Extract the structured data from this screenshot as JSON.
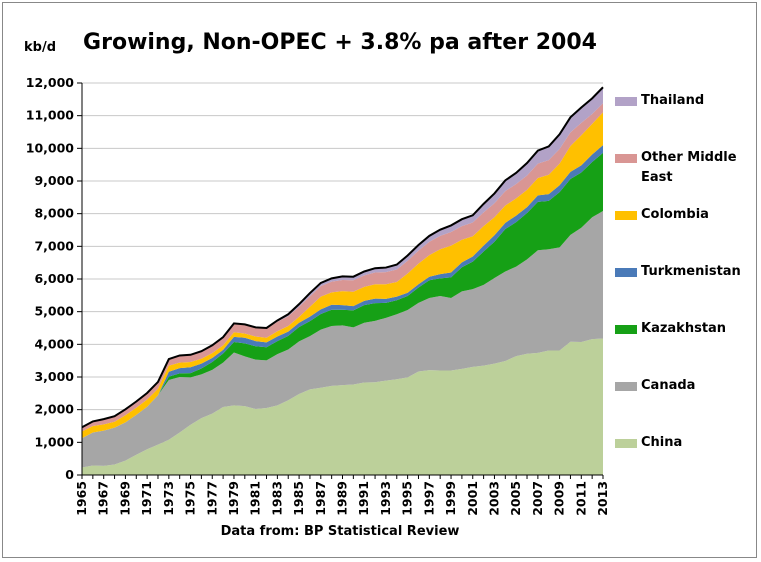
{
  "title": "Growing, Non-OPEC + 3.8% pa after 2004",
  "source": "Data from: BP Statistical Review",
  "chart_data": {
    "type": "area",
    "stacked": true,
    "title": "Growing, Non-OPEC + 3.8% pa after 2004",
    "ylabel": "kb/d",
    "xlabel": "",
    "ylim": [
      0,
      12000
    ],
    "yticks": [
      0,
      1000,
      2000,
      3000,
      4000,
      5000,
      6000,
      7000,
      8000,
      9000,
      10000,
      11000,
      12000
    ],
    "ytick_labels": [
      "0",
      "1,000",
      "2,000",
      "3,000",
      "4,000",
      "5,000",
      "6,000",
      "7,000",
      "8,000",
      "9,000",
      "10,000",
      "11,000",
      "12,000"
    ],
    "xtick_labels": [
      "1965",
      "1967",
      "1969",
      "1971",
      "1973",
      "1975",
      "1977",
      "1979",
      "1981",
      "1983",
      "1985",
      "1987",
      "1989",
      "1991",
      "1993",
      "1995",
      "1997",
      "1999",
      "2001",
      "2003",
      "2005",
      "2007",
      "2009",
      "2011",
      "2013"
    ],
    "grid": "horizontal",
    "legend_position": "right",
    "x": [
      1965,
      1966,
      1967,
      1968,
      1969,
      1970,
      1971,
      1972,
      1973,
      1974,
      1975,
      1976,
      1977,
      1978,
      1979,
      1980,
      1981,
      1982,
      1983,
      1984,
      1985,
      1986,
      1987,
      1988,
      1989,
      1990,
      1991,
      1992,
      1993,
      1994,
      1995,
      1996,
      1997,
      1998,
      1999,
      2000,
      2001,
      2002,
      2003,
      2004,
      2005,
      2006,
      2007,
      2008,
      2009,
      2010,
      2011,
      2012,
      2013
    ],
    "series": [
      {
        "name": "China",
        "color": "#bcd09a",
        "values": [
          230,
          290,
          280,
          320,
          440,
          620,
          790,
          930,
          1080,
          1300,
          1540,
          1740,
          1880,
          2080,
          2130,
          2110,
          2020,
          2050,
          2130,
          2290,
          2480,
          2620,
          2670,
          2730,
          2750,
          2770,
          2830,
          2840,
          2890,
          2930,
          2990,
          3170,
          3210,
          3200,
          3200,
          3250,
          3310,
          3350,
          3410,
          3490,
          3640,
          3710,
          3740,
          3810,
          3810,
          4080,
          4070,
          4160,
          4180
        ]
      },
      {
        "name": "Canada",
        "color": "#a6a6a6",
        "values": [
          900,
          1010,
          1080,
          1130,
          1170,
          1220,
          1300,
          1510,
          1830,
          1700,
          1450,
          1340,
          1340,
          1360,
          1620,
          1520,
          1510,
          1460,
          1570,
          1550,
          1610,
          1630,
          1780,
          1830,
          1830,
          1750,
          1830,
          1880,
          1920,
          1990,
          2060,
          2100,
          2210,
          2280,
          2220,
          2370,
          2380,
          2470,
          2620,
          2740,
          2740,
          2890,
          3140,
          3100,
          3160,
          3270,
          3500,
          3730,
          3900
        ]
      },
      {
        "name": "Kazakhstan",
        "color": "#16a016",
        "values": [
          0,
          0,
          0,
          0,
          0,
          0,
          0,
          0,
          100,
          110,
          130,
          180,
          240,
          280,
          320,
          400,
          410,
          400,
          400,
          420,
          440,
          460,
          480,
          500,
          480,
          520,
          540,
          540,
          460,
          430,
          430,
          470,
          540,
          540,
          630,
          740,
          840,
          1020,
          1110,
          1300,
          1360,
          1420,
          1480,
          1480,
          1690,
          1710,
          1690,
          1690,
          1780
        ]
      },
      {
        "name": "Turkmenistan",
        "color": "#4a7ab8",
        "values": [
          0,
          0,
          0,
          0,
          0,
          0,
          0,
          0,
          150,
          160,
          180,
          150,
          120,
          110,
          160,
          170,
          160,
          150,
          140,
          130,
          130,
          140,
          140,
          150,
          140,
          130,
          130,
          140,
          120,
          110,
          100,
          100,
          110,
          130,
          150,
          150,
          160,
          180,
          200,
          190,
          200,
          180,
          200,
          210,
          210,
          220,
          220,
          230,
          240
        ]
      },
      {
        "name": "Colombia",
        "color": "#ffc000",
        "values": [
          200,
          200,
          190,
          180,
          220,
          220,
          220,
          200,
          190,
          170,
          160,
          150,
          150,
          140,
          140,
          130,
          140,
          140,
          160,
          170,
          180,
          300,
          390,
          380,
          430,
          440,
          430,
          440,
          450,
          450,
          590,
          630,
          660,
          760,
          820,
          690,
          620,
          600,
          550,
          530,
          530,
          530,
          530,
          590,
          660,
          790,
          920,
          940,
          1000
        ]
      },
      {
        "name": "Other Middle East",
        "color": "#d99694",
        "values": [
          130,
          140,
          160,
          170,
          180,
          190,
          200,
          210,
          200,
          220,
          220,
          230,
          240,
          250,
          270,
          280,
          280,
          280,
          290,
          300,
          310,
          320,
          320,
          330,
          340,
          350,
          350,
          360,
          370,
          380,
          390,
          400,
          410,
          410,
          420,
          420,
          420,
          420,
          430,
          440,
          440,
          440,
          440,
          450,
          450,
          420,
          380,
          300,
          280
        ]
      },
      {
        "name": "Thailand",
        "color": "#b2a2c7",
        "values": [
          0,
          0,
          0,
          0,
          0,
          0,
          0,
          0,
          0,
          0,
          0,
          0,
          0,
          0,
          0,
          0,
          0,
          20,
          40,
          60,
          80,
          100,
          100,
          100,
          110,
          110,
          120,
          130,
          140,
          150,
          160,
          170,
          180,
          190,
          200,
          210,
          220,
          260,
          300,
          330,
          340,
          380,
          400,
          420,
          450,
          460,
          470,
          480,
          490
        ]
      }
    ]
  }
}
